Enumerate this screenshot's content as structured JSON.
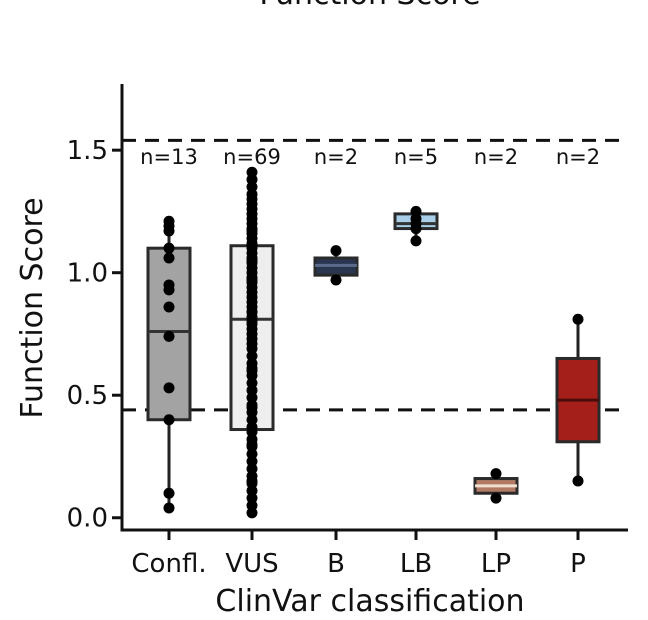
{
  "chart_data": {
    "type": "box",
    "title": "Function Score",
    "xlabel": "ClinVar classification",
    "ylabel": "Function Score",
    "ylim": [
      -0.05,
      1.77
    ],
    "yticks": [
      {
        "value": 0.0,
        "label": "0.0"
      },
      {
        "value": 0.5,
        "label": "0.5"
      },
      {
        "value": 1.0,
        "label": "1.0"
      },
      {
        "value": 1.5,
        "label": "1.5"
      }
    ],
    "thresholds": [
      1.54,
      0.44
    ],
    "grid": false,
    "legend": "none",
    "categories": [
      {
        "label": "Confl.",
        "n_label": "n=13",
        "color": "#a3a3a3",
        "median_color": "#333333",
        "q1": 0.4,
        "median": 0.76,
        "q3": 1.1,
        "whisker_low": 0.04,
        "whisker_high": 1.21,
        "points": [
          0.04,
          0.1,
          0.4,
          0.53,
          0.74,
          0.86,
          0.93,
          0.95,
          1.06,
          1.1,
          1.17,
          1.19,
          1.21
        ]
      },
      {
        "label": "VUS",
        "n_label": "n=69",
        "color": "#eeeeee",
        "median_color": "#333333",
        "q1": 0.36,
        "median": 0.81,
        "q3": 1.11,
        "whisker_low": 0.02,
        "whisker_high": 1.41,
        "points": [
          0.02,
          0.05,
          0.08,
          0.11,
          0.14,
          0.17,
          0.2,
          0.23,
          0.26,
          0.29,
          0.32,
          0.35,
          0.37,
          0.4,
          0.43,
          0.46,
          0.49,
          0.52,
          0.55,
          0.58,
          0.6,
          0.63,
          0.66,
          0.69,
          0.71,
          0.73,
          0.75,
          0.77,
          0.79,
          0.8,
          0.81,
          0.82,
          0.84,
          0.86,
          0.88,
          0.9,
          0.92,
          0.94,
          0.96,
          0.98,
          1.0,
          1.02,
          1.04,
          1.06,
          1.08,
          1.1,
          1.12,
          1.14,
          1.16,
          1.18,
          1.2,
          1.22,
          1.24,
          1.26,
          1.28,
          1.3,
          1.32,
          1.35,
          1.38,
          1.41,
          0.84,
          0.97,
          1.05,
          1.11,
          1.17,
          0.61,
          0.45,
          0.3,
          0.15
        ]
      },
      {
        "label": "B",
        "n_label": "n=2",
        "color": "#2a3550",
        "median_color": "#5a6a8a",
        "q1": 0.99,
        "median": 1.03,
        "q3": 1.06,
        "whisker_low": 0.97,
        "whisker_high": 1.09,
        "points": [
          0.97,
          1.09
        ]
      },
      {
        "label": "LB",
        "n_label": "n=5",
        "color": "#a9cfe8",
        "median_color": "#333333",
        "q1": 1.18,
        "median": 1.2,
        "q3": 1.24,
        "whisker_low": 1.13,
        "whisker_high": 1.25,
        "points": [
          1.13,
          1.18,
          1.2,
          1.22,
          1.25
        ]
      },
      {
        "label": "LP",
        "n_label": "n=2",
        "color": "#b07a63",
        "median_color": "#f0e0d0",
        "q1": 0.1,
        "median": 0.13,
        "q3": 0.16,
        "whisker_low": 0.08,
        "whisker_high": 0.18,
        "points": [
          0.08,
          0.18
        ]
      },
      {
        "label": "P",
        "n_label": "n=2",
        "color": "#a41f1a",
        "median_color": "#4a0d0b",
        "q1": 0.31,
        "median": 0.48,
        "q3": 0.65,
        "whisker_low": 0.15,
        "whisker_high": 0.81,
        "points": [
          0.15,
          0.81
        ]
      }
    ]
  }
}
